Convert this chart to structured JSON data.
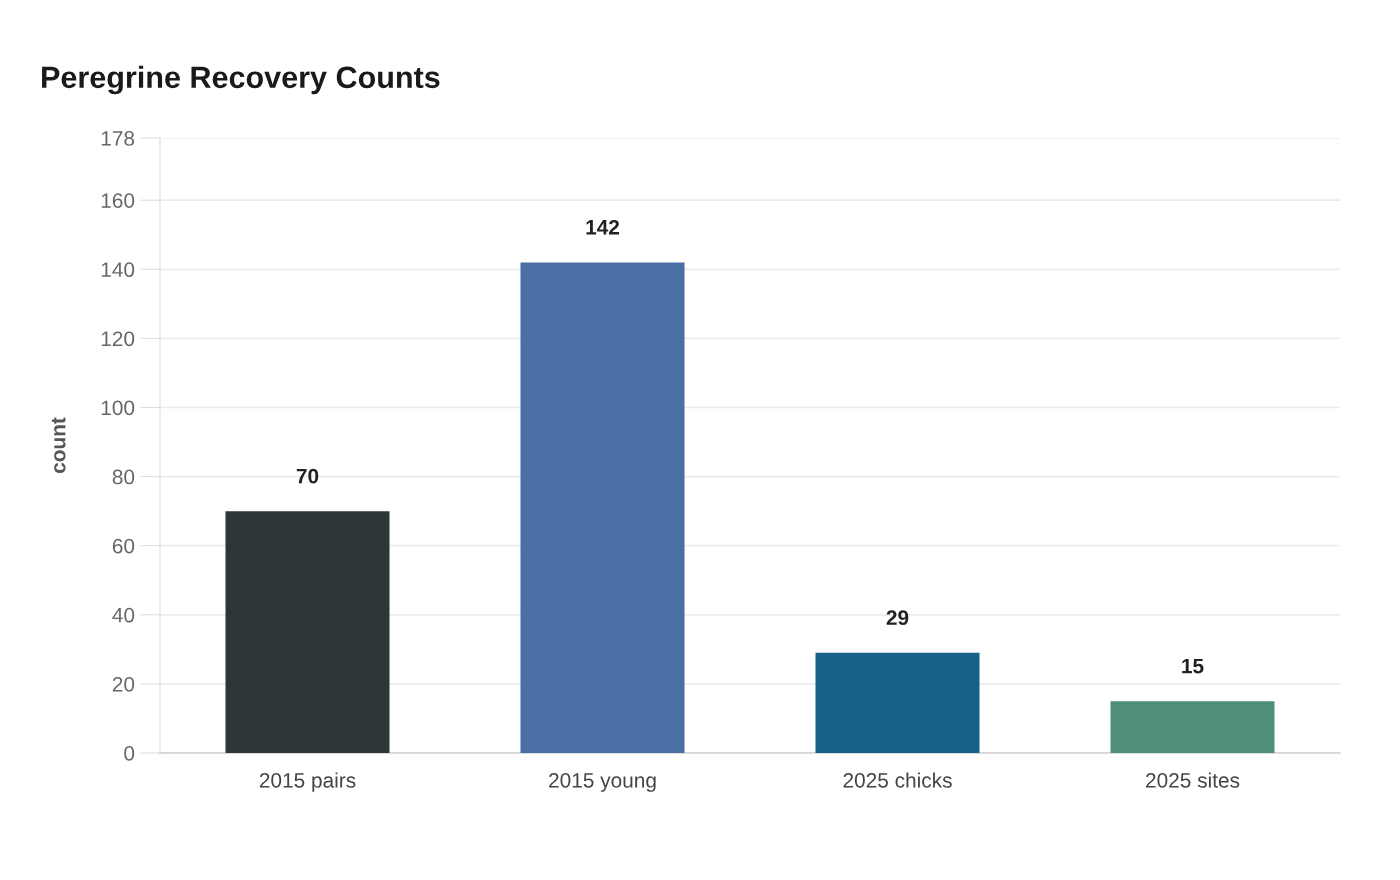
{
  "chart_data": {
    "type": "bar",
    "title": "Peregrine Recovery Counts",
    "ylabel": "count",
    "categories": [
      "2015 pairs",
      "2015 young",
      "2025 chicks",
      "2025 sites"
    ],
    "values": [
      70,
      142,
      29,
      15
    ],
    "colors": [
      "#2e3538",
      "#4a6fa5",
      "#176189",
      "#4e8e7a"
    ],
    "ylim": [
      0,
      178
    ],
    "yticks": [
      0,
      20,
      40,
      60,
      80,
      100,
      120,
      140,
      160,
      178
    ],
    "grid": "y",
    "data_labels": true
  }
}
